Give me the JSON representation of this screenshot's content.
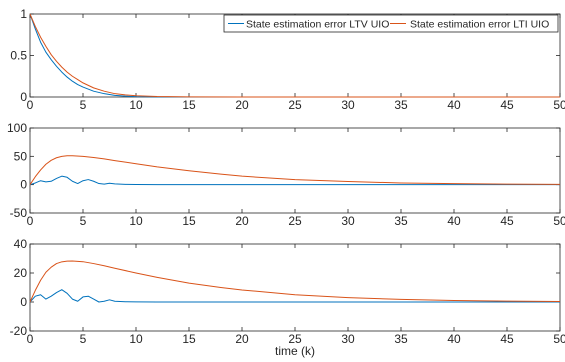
{
  "chart_data": [
    {
      "type": "line",
      "title": "",
      "xlabel": "",
      "ylabel": "",
      "xlim": [
        0,
        50
      ],
      "ylim": [
        0,
        1
      ],
      "xticks": [
        0,
        5,
        10,
        15,
        20,
        25,
        30,
        35,
        40,
        45,
        50
      ],
      "yticks": [
        0,
        0.5,
        1
      ],
      "ytick_labels": [
        "0",
        "0.5",
        "1"
      ],
      "grid": false,
      "legend": "top-right",
      "series": [
        {
          "name": "State estimation error LTV UIO",
          "color": "#0072bd",
          "x": [
            0,
            0.5,
            1,
            1.5,
            2,
            2.5,
            3,
            3.5,
            4,
            4.5,
            5,
            6,
            7,
            8,
            9,
            10,
            12,
            15,
            20,
            30,
            40,
            50
          ],
          "y": [
            1,
            0.82,
            0.66,
            0.54,
            0.45,
            0.37,
            0.3,
            0.24,
            0.19,
            0.15,
            0.12,
            0.07,
            0.04,
            0.02,
            0.01,
            0.005,
            0.002,
            0,
            0,
            0,
            0,
            0
          ]
        },
        {
          "name": "State estimation error LTI UIO",
          "color": "#d95319",
          "x": [
            0,
            0.5,
            1,
            1.5,
            2,
            2.5,
            3,
            3.5,
            4,
            4.5,
            5,
            6,
            7,
            8,
            9,
            10,
            12,
            15,
            20,
            30,
            40,
            50
          ],
          "y": [
            1,
            0.85,
            0.72,
            0.61,
            0.51,
            0.43,
            0.36,
            0.3,
            0.25,
            0.21,
            0.17,
            0.11,
            0.07,
            0.04,
            0.025,
            0.015,
            0.006,
            0.001,
            0,
            0,
            0,
            0
          ]
        }
      ]
    },
    {
      "type": "line",
      "title": "",
      "xlabel": "",
      "ylabel": "",
      "xlim": [
        0,
        50
      ],
      "ylim": [
        -50,
        100
      ],
      "xticks": [
        0,
        5,
        10,
        15,
        20,
        25,
        30,
        35,
        40,
        45,
        50
      ],
      "yticks": [
        -50,
        0,
        50,
        100
      ],
      "ytick_labels": [
        "-50",
        "0",
        "50",
        "100"
      ],
      "grid": false,
      "series": [
        {
          "color": "#0072bd",
          "x": [
            0,
            0.5,
            1,
            1.5,
            2,
            2.5,
            3,
            3.5,
            4,
            4.5,
            5,
            5.5,
            6,
            6.5,
            7,
            7.5,
            8,
            9,
            10,
            12,
            15,
            20,
            30,
            40,
            50
          ],
          "y": [
            0,
            3,
            7,
            5,
            6,
            11,
            15,
            13,
            6,
            2,
            7,
            9,
            6,
            2,
            1,
            2.5,
            1.5,
            0.5,
            0.2,
            0,
            0,
            0,
            0,
            0,
            0
          ]
        },
        {
          "color": "#d95319",
          "x": [
            0,
            0.5,
            1,
            1.5,
            2,
            2.5,
            3,
            3.5,
            4,
            5,
            6,
            7,
            8,
            10,
            12,
            15,
            18,
            20,
            25,
            30,
            35,
            40,
            45,
            50
          ],
          "y": [
            0,
            14,
            26,
            36,
            43,
            47.5,
            50,
            51,
            51,
            50,
            48,
            45.5,
            42.5,
            37,
            31.5,
            24.5,
            18.5,
            15,
            9,
            5.5,
            3,
            1.8,
            1,
            0.6
          ]
        }
      ]
    },
    {
      "type": "line",
      "title": "",
      "xlabel": "time (k)",
      "ylabel": "",
      "xlim": [
        0,
        50
      ],
      "ylim": [
        -20,
        40
      ],
      "xticks": [
        0,
        5,
        10,
        15,
        20,
        25,
        30,
        35,
        40,
        45,
        50
      ],
      "yticks": [
        -20,
        0,
        20,
        40
      ],
      "ytick_labels": [
        "-20",
        "0",
        "20",
        "40"
      ],
      "grid": false,
      "series": [
        {
          "color": "#0072bd",
          "x": [
            0,
            0.5,
            1,
            1.5,
            2,
            2.5,
            3,
            3.5,
            4,
            4.5,
            5,
            5.5,
            6,
            6.5,
            7,
            7.5,
            8,
            9,
            10,
            12,
            15,
            20,
            30,
            40,
            50
          ],
          "y": [
            0,
            4,
            5,
            2,
            4,
            6.5,
            8.5,
            6,
            2,
            0.5,
            3.5,
            4,
            2,
            0,
            0.5,
            1.5,
            0.5,
            0.2,
            0.1,
            0,
            0,
            0,
            0,
            0,
            0
          ]
        },
        {
          "color": "#d95319",
          "x": [
            0,
            0.5,
            1,
            1.5,
            2,
            2.5,
            3,
            3.5,
            4,
            5,
            6,
            7,
            8,
            10,
            12,
            15,
            18,
            20,
            25,
            30,
            35,
            40,
            45,
            50
          ],
          "y": [
            0,
            8,
            15,
            20.5,
            24,
            26.5,
            27.7,
            28.2,
            28.3,
            27.8,
            26.5,
            25,
            23.3,
            20,
            17,
            13,
            10,
            8.3,
            5,
            3,
            1.8,
            1,
            0.6,
            0.3
          ]
        }
      ]
    }
  ]
}
